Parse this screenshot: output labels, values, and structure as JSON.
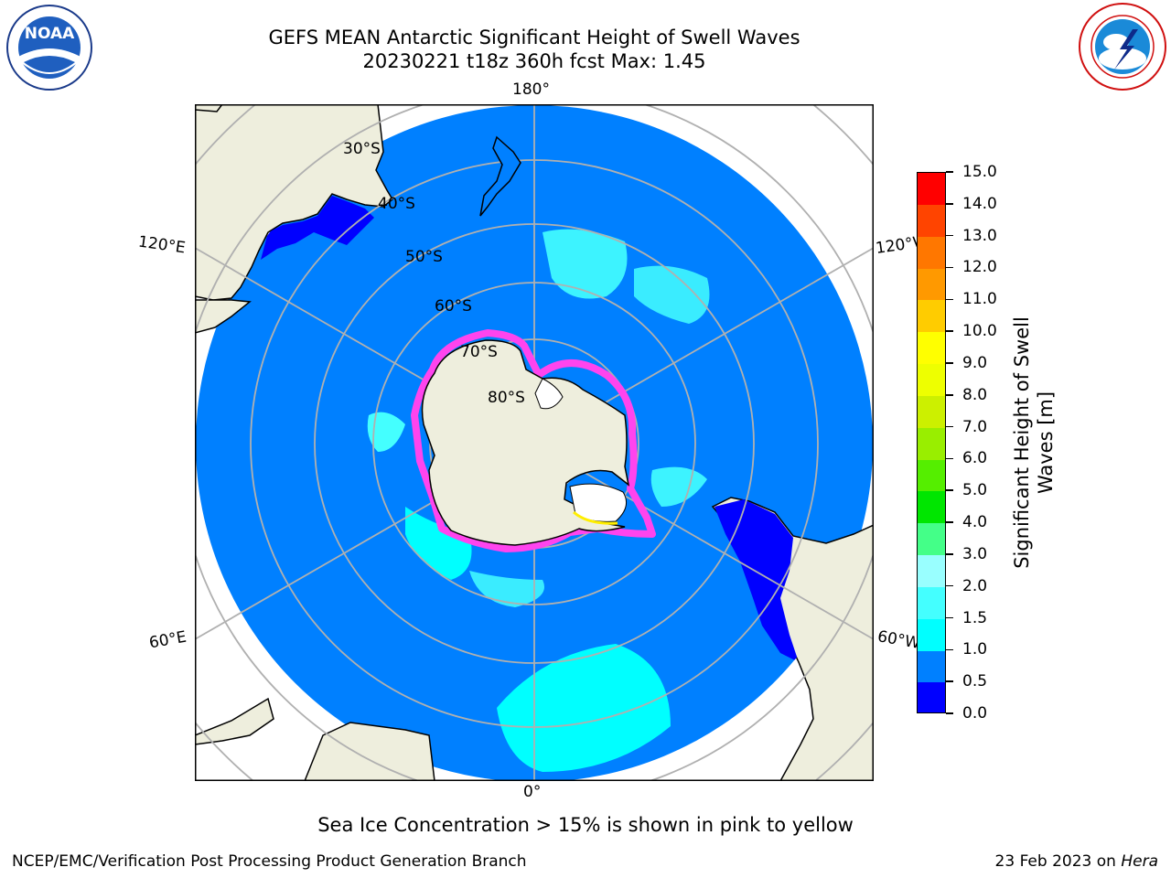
{
  "header": {
    "title_line1": "GEFS MEAN Antarctic Significant Height of Swell Waves",
    "title_line2": "20230221 t18z 360h fcst   Max: 1.45"
  },
  "logos": {
    "left": {
      "icon": "noaa-logo",
      "text": "NOAA",
      "ring_text": "NATIONAL OCEANIC AND ATMOSPHERIC ADMINISTRATION · U.S. DEPARTMENT OF COMMERCE"
    },
    "right": {
      "icon": "national-weather-service-logo",
      "ring_text": "NATIONAL WEATHER SERVICE"
    }
  },
  "map": {
    "projection": "south-polar-stereographic",
    "longitude_labels": {
      "top": "180°",
      "bottom": "0°",
      "upper_left": "120°E",
      "lower_left": "60°E",
      "upper_right": "120°W",
      "lower_right": "60°W"
    },
    "latitude_labels": [
      "30°S",
      "40°S",
      "50°S",
      "60°S",
      "70°S",
      "80°S"
    ],
    "colors": {
      "land": "#eeeedd",
      "ocean_base": "#0080ff",
      "swell_1_15": "#00ffff",
      "swell_15_2": "#44ffff",
      "swell_0_05": "#0000ff",
      "ice_edge": "#ff44ee",
      "ice_yellow": "#ffee00",
      "grid": "#b0b0b0"
    }
  },
  "colorbar": {
    "title_line1": "Significant Height of Swell",
    "title_line2": "Waves [m]",
    "ticks": [
      "0.0",
      "0.5",
      "1.0",
      "1.5",
      "2.0",
      "3.0",
      "4.0",
      "5.0",
      "6.0",
      "7.0",
      "8.0",
      "9.0",
      "10.0",
      "11.0",
      "12.0",
      "13.0",
      "14.0",
      "15.0"
    ],
    "colors": [
      "#0000ff",
      "#0080ff",
      "#00ffff",
      "#44ffff",
      "#99ffff",
      "#44ff88",
      "#00e600",
      "#55ee00",
      "#99ee00",
      "#ccf000",
      "#eeff00",
      "#ffff00",
      "#ffcc00",
      "#ff9900",
      "#ff7700",
      "#ff4400",
      "#ff0000"
    ]
  },
  "annotation": "Sea Ice Concentration > 15% is shown in pink to yellow",
  "footer": {
    "left": "NCEP/EMC/Verification Post Processing Product Generation Branch",
    "right_prefix": "23 Feb 2023 on ",
    "right_machine": "Hera"
  }
}
